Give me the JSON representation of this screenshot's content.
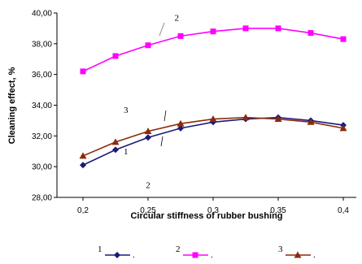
{
  "chart_data": {
    "type": "line",
    "title": "",
    "xlabel": "Circular stiffness of rubber bushing",
    "ylabel": "Cleaning effect, %",
    "x_ticks": [
      "0,2",
      "0,25",
      "0,3",
      "0,35",
      "0,4"
    ],
    "y_ticks": [
      "28,00",
      "30,00",
      "32,00",
      "34,00",
      "36,00",
      "38,00",
      "40,00"
    ],
    "xlim": [
      0.18,
      0.41
    ],
    "ylim": [
      28,
      40
    ],
    "grid": false,
    "legend_position": "bottom",
    "series": [
      {
        "name": "1",
        "color": "#1a1a7a",
        "marker": "diamond",
        "x": [
          0.2,
          0.225,
          0.25,
          0.275,
          0.3,
          0.325,
          0.35,
          0.375,
          0.4
        ],
        "y": [
          30.1,
          31.1,
          31.9,
          32.5,
          32.9,
          33.1,
          33.2,
          33.0,
          32.7
        ]
      },
      {
        "name": "2",
        "color": "#ff00ff",
        "marker": "square",
        "x": [
          0.2,
          0.225,
          0.25,
          0.275,
          0.3,
          0.325,
          0.35,
          0.375,
          0.4
        ],
        "y": [
          36.2,
          37.2,
          37.9,
          38.5,
          38.8,
          39.0,
          39.0,
          38.7,
          38.3
        ]
      },
      {
        "name": "3",
        "color": "#8b2a0a",
        "marker": "triangle",
        "x": [
          0.2,
          0.225,
          0.25,
          0.275,
          0.3,
          0.325,
          0.35,
          0.375,
          0.4
        ],
        "y": [
          30.7,
          31.6,
          32.3,
          32.8,
          33.1,
          33.2,
          33.1,
          32.9,
          32.5
        ]
      }
    ],
    "annotations": [
      {
        "text": "2",
        "x": 0.272,
        "y": 39.5
      },
      {
        "text": "3",
        "x": 0.233,
        "y": 33.5
      },
      {
        "text": "1",
        "x": 0.233,
        "y": 30.8
      },
      {
        "text": "2",
        "x": 0.25,
        "y": 28.6
      }
    ],
    "legend_entries": [
      {
        "label": "1",
        "suffix": "."
      },
      {
        "label": "2",
        "suffix": "."
      },
      {
        "label": "3",
        "suffix": "."
      }
    ]
  }
}
